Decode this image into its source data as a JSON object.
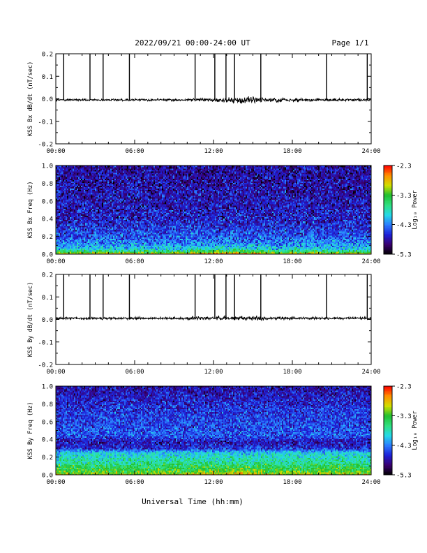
{
  "header": {
    "title": "2022/09/21  00:00-24:00 UT",
    "page_label": "Page 1/1"
  },
  "footer": {
    "xlabel": "Universal Time (hh:mm)"
  },
  "colorbar": {
    "label": "Log₁₀ Power",
    "ticks": [
      "-2.3",
      "-3.3",
      "-4.3",
      "-5.3"
    ],
    "range": [
      -5.3,
      -2.3
    ],
    "palette": [
      "#000000",
      "#3a0070",
      "#1d20d8",
      "#2a7cff",
      "#25d9e8",
      "#30e080",
      "#20c030",
      "#d0e000",
      "#ff9000",
      "#ff0000"
    ]
  },
  "chart_data": [
    {
      "type": "line",
      "title": "",
      "ylabel": "KSS Bx dB/dt (nT/sec)",
      "xlabel": "",
      "x_unit": "hours UT",
      "xlim": [
        0,
        24
      ],
      "ylim": [
        -0.2,
        0.2
      ],
      "y_ticks": [
        "0.2",
        "0.1",
        "0.0",
        "-0.1",
        "-0.2"
      ],
      "y_tick_values": [
        0.2,
        0.1,
        0.0,
        -0.1,
        -0.2
      ],
      "x_ticks": [
        "00:00",
        "06:00",
        "12:00",
        "18:00",
        "24:00"
      ],
      "x_tick_values": [
        0,
        6,
        12,
        18,
        24
      ],
      "baseline": -0.005,
      "noise": [
        {
          "from": 0,
          "to": 10,
          "amp": 0.004
        },
        {
          "from": 10,
          "to": 12.8,
          "amp": 0.006
        },
        {
          "from": 12.8,
          "to": 15.8,
          "amp": 0.011
        },
        {
          "from": 15.8,
          "to": 18.5,
          "amp": 0.007
        },
        {
          "from": 18.5,
          "to": 24,
          "amp": 0.005
        }
      ],
      "spikes": [
        {
          "x": 0.6,
          "y": 0.2
        },
        {
          "x": 2.6,
          "y": 0.2
        },
        {
          "x": 3.6,
          "y": 0.2
        },
        {
          "x": 5.6,
          "y": 0.2
        },
        {
          "x": 10.6,
          "y": 0.2
        },
        {
          "x": 12.1,
          "y": 0.2
        },
        {
          "x": 12.95,
          "y": 0.2
        },
        {
          "x": 13.6,
          "y": 0.2
        },
        {
          "x": 15.6,
          "y": 0.2
        },
        {
          "x": 20.6,
          "y": 0.2
        },
        {
          "x": 23.7,
          "y": 0.2
        }
      ]
    },
    {
      "type": "heatmap",
      "title": "",
      "ylabel": "KSS Bx Freq (Hz)",
      "xlabel": "",
      "x_unit": "hours UT",
      "xlim": [
        0,
        24
      ],
      "ylim": [
        0,
        1.0
      ],
      "y_ticks": [
        "1.0",
        "0.8",
        "0.6",
        "0.4",
        "0.2",
        "0.0"
      ],
      "y_tick_values": [
        1.0,
        0.8,
        0.6,
        0.4,
        0.2,
        0.0
      ],
      "x_ticks": [
        "00:00",
        "06:00",
        "12:00",
        "18:00",
        "24:00"
      ],
      "x_tick_values": [
        0,
        6,
        12,
        18,
        24
      ],
      "value_unit": "log10 power",
      "profile": [
        {
          "f": 0.0,
          "p": -2.7
        },
        {
          "f": 0.02,
          "p": -3.2
        },
        {
          "f": 0.05,
          "p": -3.9
        },
        {
          "f": 0.1,
          "p": -4.2
        },
        {
          "f": 0.2,
          "p": -4.45
        },
        {
          "f": 0.35,
          "p": -4.65
        },
        {
          "f": 0.6,
          "p": -4.75
        },
        {
          "f": 1.0,
          "p": -4.85
        }
      ],
      "afternoon_boost": {
        "from": 10,
        "to": 17,
        "peak_hour": 13,
        "amount": 0.35
      },
      "spread": 0.4
    },
    {
      "type": "line",
      "title": "",
      "ylabel": "KSS By dB/dt (nT/sec)",
      "xlabel": "",
      "x_unit": "hours UT",
      "xlim": [
        0,
        24
      ],
      "ylim": [
        -0.2,
        0.2
      ],
      "y_ticks": [
        "0.2",
        "0.1",
        "0.0",
        "-0.1",
        "-0.2"
      ],
      "y_tick_values": [
        0.2,
        0.1,
        0.0,
        -0.1,
        -0.2
      ],
      "x_ticks": [
        "00:00",
        "06:00",
        "12:00",
        "18:00",
        "24:00"
      ],
      "x_tick_values": [
        0,
        6,
        12,
        18,
        24
      ],
      "baseline": 0.005,
      "noise": [
        {
          "from": 0,
          "to": 10,
          "amp": 0.004
        },
        {
          "from": 10,
          "to": 12.8,
          "amp": 0.006
        },
        {
          "from": 12.8,
          "to": 15.8,
          "amp": 0.008
        },
        {
          "from": 15.8,
          "to": 18.5,
          "amp": 0.005
        },
        {
          "from": 18.5,
          "to": 24,
          "amp": 0.004
        }
      ],
      "spikes": [
        {
          "x": 0.6,
          "y": 0.2
        },
        {
          "x": 2.6,
          "y": 0.2
        },
        {
          "x": 3.6,
          "y": 0.2
        },
        {
          "x": 5.6,
          "y": 0.2
        },
        {
          "x": 10.6,
          "y": 0.2
        },
        {
          "x": 12.1,
          "y": 0.2
        },
        {
          "x": 12.95,
          "y": 0.2
        },
        {
          "x": 13.6,
          "y": 0.2
        },
        {
          "x": 15.6,
          "y": 0.2
        },
        {
          "x": 20.6,
          "y": 0.2
        },
        {
          "x": 23.7,
          "y": 0.2
        }
      ]
    },
    {
      "type": "heatmap",
      "title": "",
      "ylabel": "KSS By Freq (Hz)",
      "xlabel": "",
      "x_unit": "hours UT",
      "xlim": [
        0,
        24
      ],
      "ylim": [
        0,
        1.0
      ],
      "y_ticks": [
        "1.0",
        "0.8",
        "0.6",
        "0.4",
        "0.2",
        "0.0"
      ],
      "y_tick_values": [
        1.0,
        0.8,
        0.6,
        0.4,
        0.2,
        0.0
      ],
      "x_ticks": [
        "00:00",
        "06:00",
        "12:00",
        "18:00",
        "24:00"
      ],
      "x_tick_values": [
        0,
        6,
        12,
        18,
        24
      ],
      "value_unit": "log10 power",
      "profile": [
        {
          "f": 0.0,
          "p": -3.0
        },
        {
          "f": 0.05,
          "p": -3.35
        },
        {
          "f": 0.15,
          "p": -3.7
        },
        {
          "f": 0.25,
          "p": -4.0
        },
        {
          "f": 0.3,
          "p": -4.6
        },
        {
          "f": 0.37,
          "p": -4.75
        },
        {
          "f": 0.45,
          "p": -4.45
        },
        {
          "f": 0.7,
          "p": -4.55
        },
        {
          "f": 1.0,
          "p": -4.8
        }
      ],
      "afternoon_boost": {
        "from": 10,
        "to": 17,
        "peak_hour": 13,
        "amount": 0.25
      },
      "spread": 0.35
    }
  ]
}
